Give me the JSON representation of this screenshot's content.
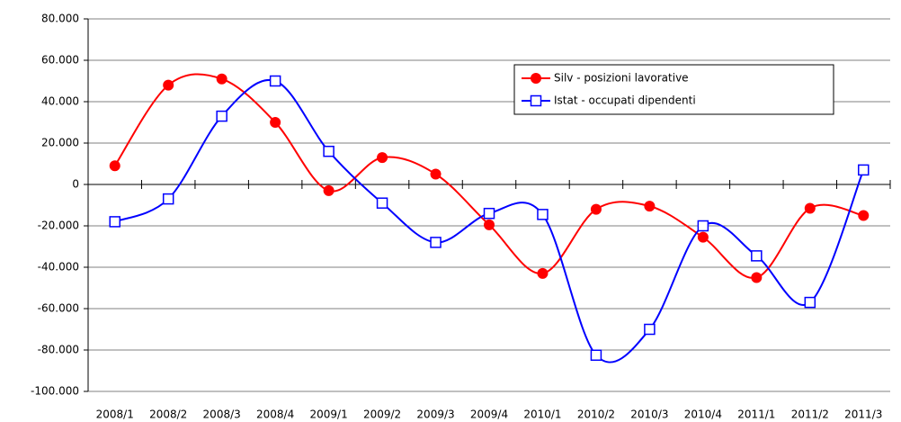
{
  "chart_data": {
    "type": "line",
    "categories": [
      "2008/1",
      "2008/2",
      "2008/3",
      "2008/4",
      "2009/1",
      "2009/2",
      "2009/3",
      "2009/4",
      "2010/1",
      "2010/2",
      "2010/3",
      "2010/4",
      "2011/1",
      "2011/2",
      "2011/3"
    ],
    "series": [
      {
        "name": "Silv - posizioni lavorative",
        "color": "#ff0000",
        "marker": "circle",
        "values": [
          9000,
          48000,
          51000,
          30000,
          -3000,
          13000,
          5000,
          -19500,
          -43000,
          -12000,
          -10500,
          -25500,
          -45000,
          -11500,
          -15000
        ]
      },
      {
        "name": "Istat - occupati dipendenti",
        "color": "#0000ff",
        "marker": "square",
        "values": [
          -18000,
          -7000,
          33000,
          50000,
          16000,
          -9000,
          -28000,
          -14000,
          -14500,
          -82500,
          -70000,
          -20000,
          -34500,
          -57000,
          7000
        ]
      }
    ],
    "ylim": [
      -100000,
      80000
    ],
    "yticks": [
      {
        "value": -100000,
        "label": "-100.000"
      },
      {
        "value": -80000,
        "label": "-80.000"
      },
      {
        "value": -60000,
        "label": "-60.000"
      },
      {
        "value": -40000,
        "label": "-40.000"
      },
      {
        "value": -20000,
        "label": "-20.000"
      },
      0,
      {
        "value": 20000,
        "label": "20.000"
      },
      {
        "value": 40000,
        "label": "40.000"
      },
      {
        "value": 60000,
        "label": "60.000"
      },
      {
        "value": 80000,
        "label": "80.000"
      }
    ],
    "grid": true,
    "smooth": true,
    "legend": "upper right"
  }
}
